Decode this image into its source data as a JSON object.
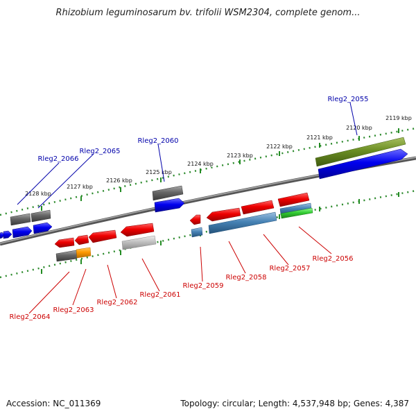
{
  "title": "Rhizobium leguminosarum bv. trifolii WSM2304, complete genom...",
  "footer": {
    "accession": "Accession: NC_011369",
    "summary": "Topology: circular; Length: 4,537,948 bp; Genes: 4,387"
  },
  "scale_labels": [
    "2119 kbp",
    "2120 kbp",
    "2121 kbp",
    "2122 kbp",
    "2123 kbp",
    "2124 kbp",
    "2125 kbp",
    "2126 kbp",
    "2127 kbp",
    "2128 kbp"
  ],
  "genes_top": [
    {
      "label": "Rleg2_2055",
      "color": "#0000aa"
    },
    {
      "label": "Rleg2_2060",
      "color": "#0000aa"
    },
    {
      "label": "Rleg2_2065",
      "color": "#0000aa"
    },
    {
      "label": "Rleg2_2066",
      "color": "#0000aa"
    }
  ],
  "genes_bottom": [
    {
      "label": "Rleg2_2056",
      "color": "#cc0000"
    },
    {
      "label": "Rleg2_2057",
      "color": "#cc0000"
    },
    {
      "label": "Rleg2_2058",
      "color": "#cc0000"
    },
    {
      "label": "Rleg2_2059",
      "color": "#cc0000"
    },
    {
      "label": "Rleg2_2061",
      "color": "#cc0000"
    },
    {
      "label": "Rleg2_2062",
      "color": "#cc0000"
    },
    {
      "label": "Rleg2_2063",
      "color": "#cc0000"
    },
    {
      "label": "Rleg2_2064",
      "color": "#cc0000"
    }
  ],
  "colors": {
    "backbone": "#777777",
    "ticks": "#2e8b2e",
    "red": "#dd0000",
    "blue": "#0000ee",
    "gray": "#666666",
    "olive": "#6b8e23",
    "steelblue": "#4682b4",
    "orange": "#ff9900",
    "lightgray": "#bbbbbb",
    "green": "#33cc33"
  }
}
